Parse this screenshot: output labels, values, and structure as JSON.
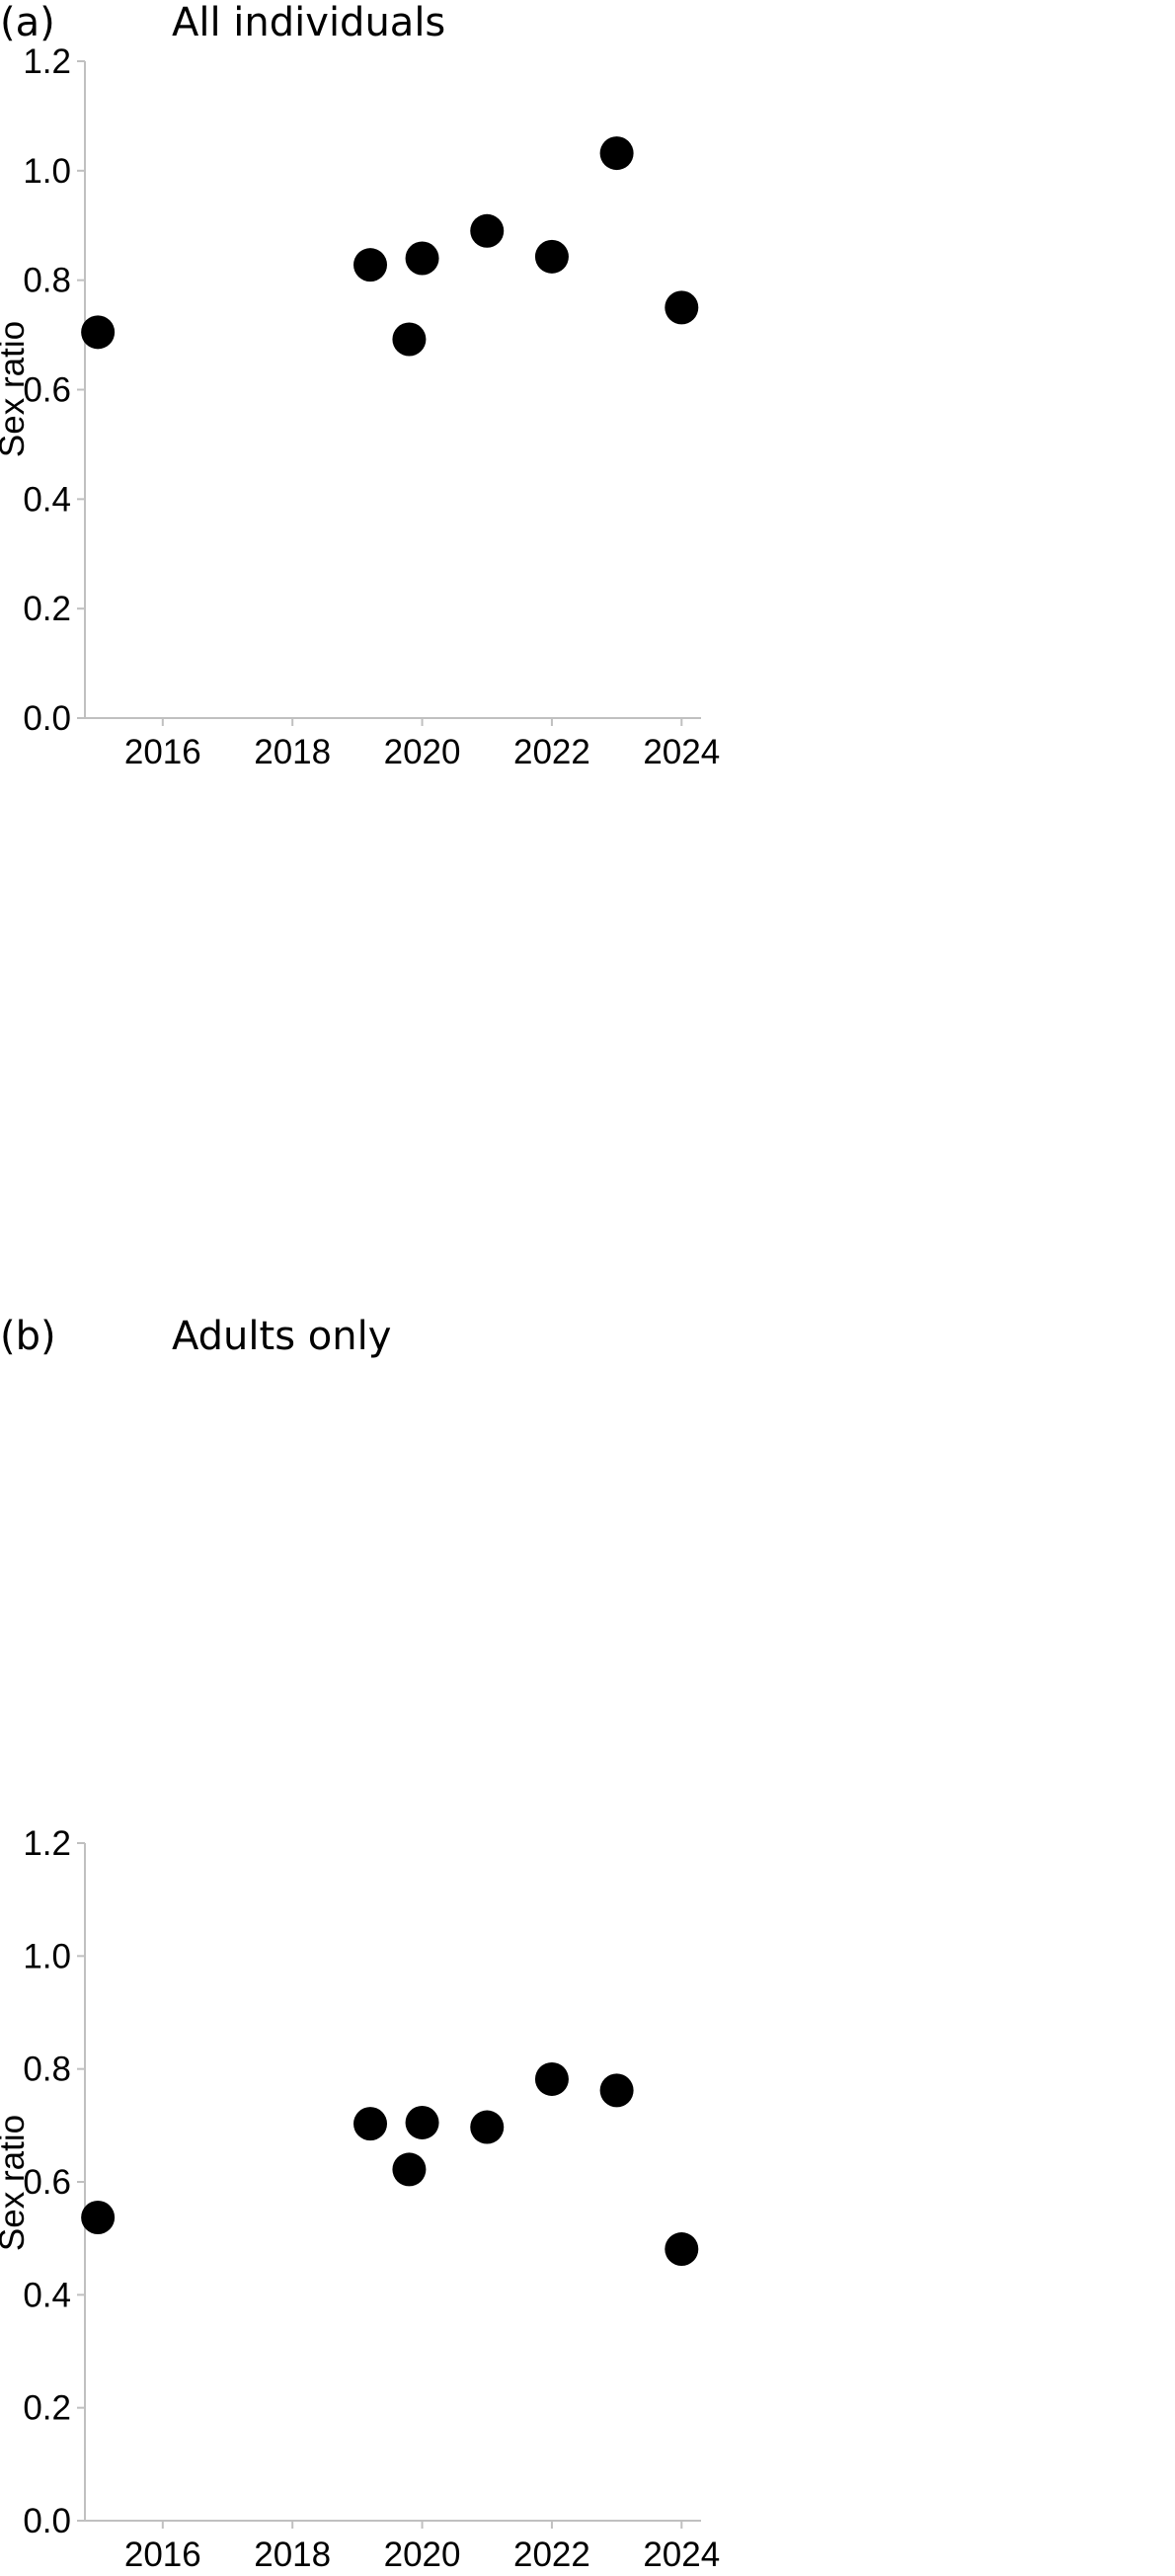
{
  "chart_data": [
    {
      "panel_label": "(a)",
      "title": "All individuals",
      "type": "scatter",
      "ylabel": "Sex ratio",
      "xlabel": "",
      "xlim": [
        2014.8,
        2024.3
      ],
      "ylim": [
        0.0,
        1.2
      ],
      "xticks": [
        2016,
        2018,
        2020,
        2022,
        2024
      ],
      "yticks": [
        0.0,
        0.2,
        0.4,
        0.6,
        0.8,
        1.0,
        1.2
      ],
      "ytick_labels": [
        "0.0",
        "0.2",
        "0.4",
        "0.6",
        "0.8",
        "1.0",
        "1.2"
      ],
      "grid": false,
      "marker_color": "#000000",
      "axis_color": "#c0c0c0",
      "points": [
        {
          "x": 2015.0,
          "y": 0.705
        },
        {
          "x": 2019.2,
          "y": 0.828
        },
        {
          "x": 2019.8,
          "y": 0.692
        },
        {
          "x": 2020.0,
          "y": 0.84
        },
        {
          "x": 2021.0,
          "y": 0.89
        },
        {
          "x": 2022.0,
          "y": 0.843
        },
        {
          "x": 2023.0,
          "y": 1.032
        },
        {
          "x": 2024.0,
          "y": 0.75
        }
      ]
    },
    {
      "panel_label": "(b)",
      "title": "Adults only",
      "type": "scatter",
      "ylabel": "Sex ratio",
      "xlabel": "",
      "xlim": [
        2014.8,
        2024.3
      ],
      "ylim": [
        0.0,
        1.2
      ],
      "xticks": [
        2016,
        2018,
        2020,
        2022,
        2024
      ],
      "yticks": [
        0.0,
        0.2,
        0.4,
        0.6,
        0.8,
        1.0,
        1.2
      ],
      "ytick_labels": [
        "0.0",
        "0.2",
        "0.4",
        "0.6",
        "0.8",
        "1.0",
        "1.2"
      ],
      "grid": false,
      "marker_color": "#000000",
      "axis_color": "#c0c0c0",
      "points": [
        {
          "x": 2015.0,
          "y": 0.537
        },
        {
          "x": 2019.2,
          "y": 0.703
        },
        {
          "x": 2019.8,
          "y": 0.622
        },
        {
          "x": 2020.0,
          "y": 0.705
        },
        {
          "x": 2021.0,
          "y": 0.697
        },
        {
          "x": 2022.0,
          "y": 0.782
        },
        {
          "x": 2023.0,
          "y": 0.762
        },
        {
          "x": 2024.0,
          "y": 0.481
        }
      ]
    }
  ]
}
